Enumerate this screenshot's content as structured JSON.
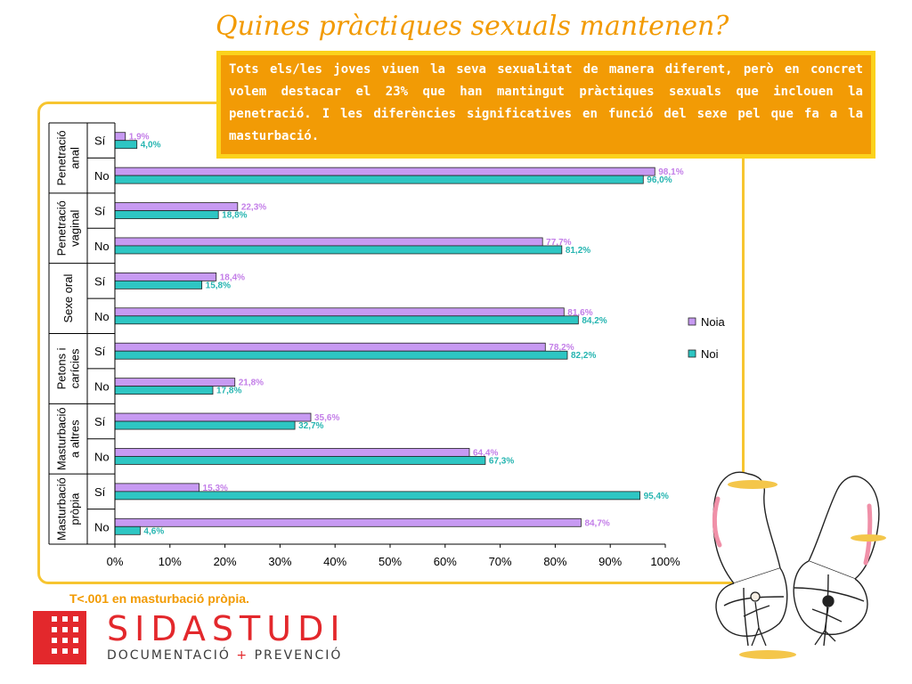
{
  "title": "Quines pràctiques sexuals mantenen?",
  "note": "Tots els/les joves viuen la seva sexualitat de manera diferent, però en concret volem destacar el 23% que han mantingut pràctiques sexuals que inclouen la penetració. I les diferències significatives en funció del sexe pel que fa a la masturbació.",
  "footnote": "T<.001 en masturbació pròpia.",
  "logo": {
    "name": "SIDASTUDI",
    "tag_left": "DOCUMENTACIÓ",
    "tag_plus": "+",
    "tag_right": "PREVENCIÓ"
  },
  "colors": {
    "noia": "#c79af2",
    "noi": "#2ec6c3",
    "noia_label": "#c37ee8",
    "noi_label": "#26b5b1",
    "accent": "#f29a00",
    "frame": "#f7c530"
  },
  "chart_data": {
    "type": "bar",
    "orientation": "horizontal",
    "groups": [
      {
        "label": "Penetració anal",
        "label_lines": [
          "Penetració",
          "anal"
        ]
      },
      {
        "label": "Penetració vaginal",
        "label_lines": [
          "Penetració",
          "vaginal"
        ]
      },
      {
        "label": "Sexe oral",
        "label_lines": [
          "Sexe oral"
        ]
      },
      {
        "label": "Petons i carícies",
        "label_lines": [
          "Petons i",
          "carícies"
        ]
      },
      {
        "label": "Masturbació a altres",
        "label_lines": [
          "Masturbació",
          "a altres"
        ]
      },
      {
        "label": "Masturbació pròpia",
        "label_lines": [
          "Masturbació",
          "pròpia"
        ]
      }
    ],
    "categories": [
      "Sí",
      "No"
    ],
    "series": [
      {
        "name": "Noia",
        "values": [
          [
            1.9,
            98.1
          ],
          [
            22.3,
            77.7
          ],
          [
            18.4,
            81.6
          ],
          [
            78.2,
            21.8
          ],
          [
            35.6,
            64.4
          ],
          [
            15.3,
            84.7
          ]
        ],
        "labels": [
          [
            "1,9%",
            "98,1%"
          ],
          [
            "22,3%",
            "77,7%"
          ],
          [
            "18,4%",
            "81,6%"
          ],
          [
            "78,2%",
            "21,8%"
          ],
          [
            "35,6%",
            "64,4%"
          ],
          [
            "15,3%",
            "84,7%"
          ]
        ]
      },
      {
        "name": "Noi",
        "values": [
          [
            4.0,
            96.0
          ],
          [
            18.8,
            81.2
          ],
          [
            15.8,
            84.2
          ],
          [
            82.2,
            17.8
          ],
          [
            32.7,
            67.3
          ],
          [
            95.4,
            4.6
          ]
        ],
        "labels": [
          [
            "4,0%",
            "96,0%"
          ],
          [
            "18,8%",
            "81,2%"
          ],
          [
            "15,8%",
            "84,2%"
          ],
          [
            "82,2%",
            "17,8%"
          ],
          [
            "32,7%",
            "67,3%"
          ],
          [
            "95,4%",
            "4,6%"
          ]
        ]
      }
    ],
    "x_ticks": [
      "0%",
      "10%",
      "20%",
      "30%",
      "40%",
      "50%",
      "60%",
      "70%",
      "80%",
      "90%",
      "100%"
    ],
    "xlim": [
      0,
      100
    ],
    "legend": "right",
    "grid": false
  }
}
